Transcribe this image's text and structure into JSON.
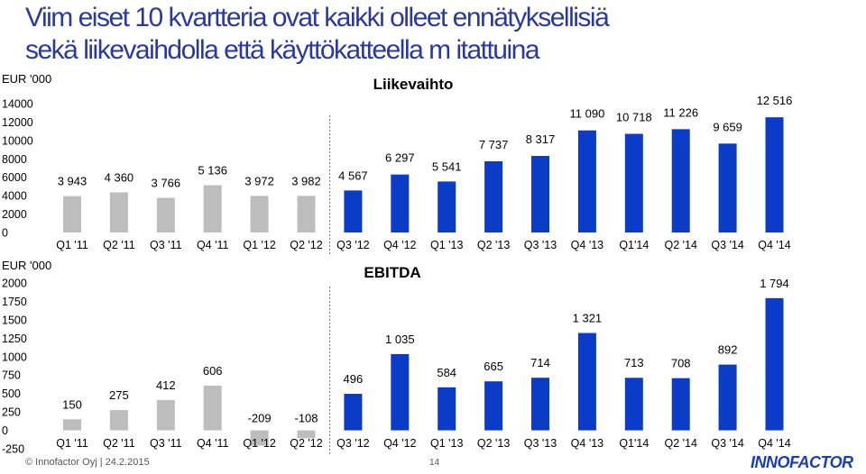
{
  "headline": {
    "line1": "Viim eiset 10 kvartteria ovat kaikki olleet ennätyksellisiä",
    "line2": "sekä liikevaihdolla että käyttökatteella m itattuina"
  },
  "colors": {
    "title": "#2a3a9c",
    "bar_gray": "#bdbdbd",
    "bar_blue": "#0a3cc8",
    "divider": "#c040c0"
  },
  "footer": {
    "copyright": "© Innofactor Oyj",
    "date": "24.2.2015",
    "page": "14",
    "logo": "INNOFACTOR"
  },
  "chart_data": [
    {
      "type": "bar",
      "title": "Liikevaihto",
      "unit_label": "EUR '000",
      "ylim": [
        0,
        14000
      ],
      "yticks": [
        "0",
        "2000",
        "4000",
        "6000",
        "8000",
        "10000",
        "12000",
        "14000"
      ],
      "categories": [
        "Q1 '11",
        "Q2 '11",
        "Q3 '11",
        "Q4 '11",
        "Q1 '12",
        "Q2 '12",
        "Q3 '12",
        "Q4 '12",
        "Q1 '13",
        "Q2 '13",
        "Q3 '13",
        "Q4 '13",
        "Q1'14",
        "Q2 '14",
        "Q3 '14",
        "Q4 '14"
      ],
      "values": [
        3943,
        4360,
        3766,
        5136,
        3972,
        3982,
        4567,
        6297,
        5541,
        7737,
        8317,
        11090,
        10718,
        11226,
        9659,
        12516
      ],
      "data_labels": [
        "3 943",
        "4 360",
        "3 766",
        "5 136",
        "3 972",
        "3 982",
        "4 567",
        "6 297",
        "5 541",
        "7 737",
        "8 317",
        "11 090",
        "10 718",
        "11 226",
        "9 659",
        "12 516"
      ],
      "highlight_from_index": 6,
      "grid": false
    },
    {
      "type": "bar",
      "title": "EBITDA",
      "unit_label": "EUR '000",
      "ylim": [
        -250,
        2000
      ],
      "yticks": [
        "-250",
        "0",
        "250",
        "500",
        "750",
        "1000",
        "1250",
        "1500",
        "1750",
        "2000"
      ],
      "categories": [
        "Q1 '11",
        "Q2 '11",
        "Q3 '11",
        "Q4 '11",
        "Q1 '12",
        "Q2 '12",
        "Q3 '12",
        "Q4 '12",
        "Q1 '13",
        "Q2 '13",
        "Q3 '13",
        "Q4 '13",
        "Q1'14",
        "Q2 '14",
        "Q3 '14",
        "Q4 '14"
      ],
      "values": [
        150,
        275,
        412,
        606,
        -209,
        -108,
        496,
        1035,
        584,
        665,
        714,
        1321,
        713,
        708,
        892,
        1794
      ],
      "data_labels": [
        "150",
        "275",
        "412",
        "606",
        "-209",
        "-108",
        "496",
        "1 035",
        "584",
        "665",
        "714",
        "1 321",
        "713",
        "708",
        "892",
        "1 794"
      ],
      "highlight_from_index": 6,
      "grid": false
    }
  ]
}
